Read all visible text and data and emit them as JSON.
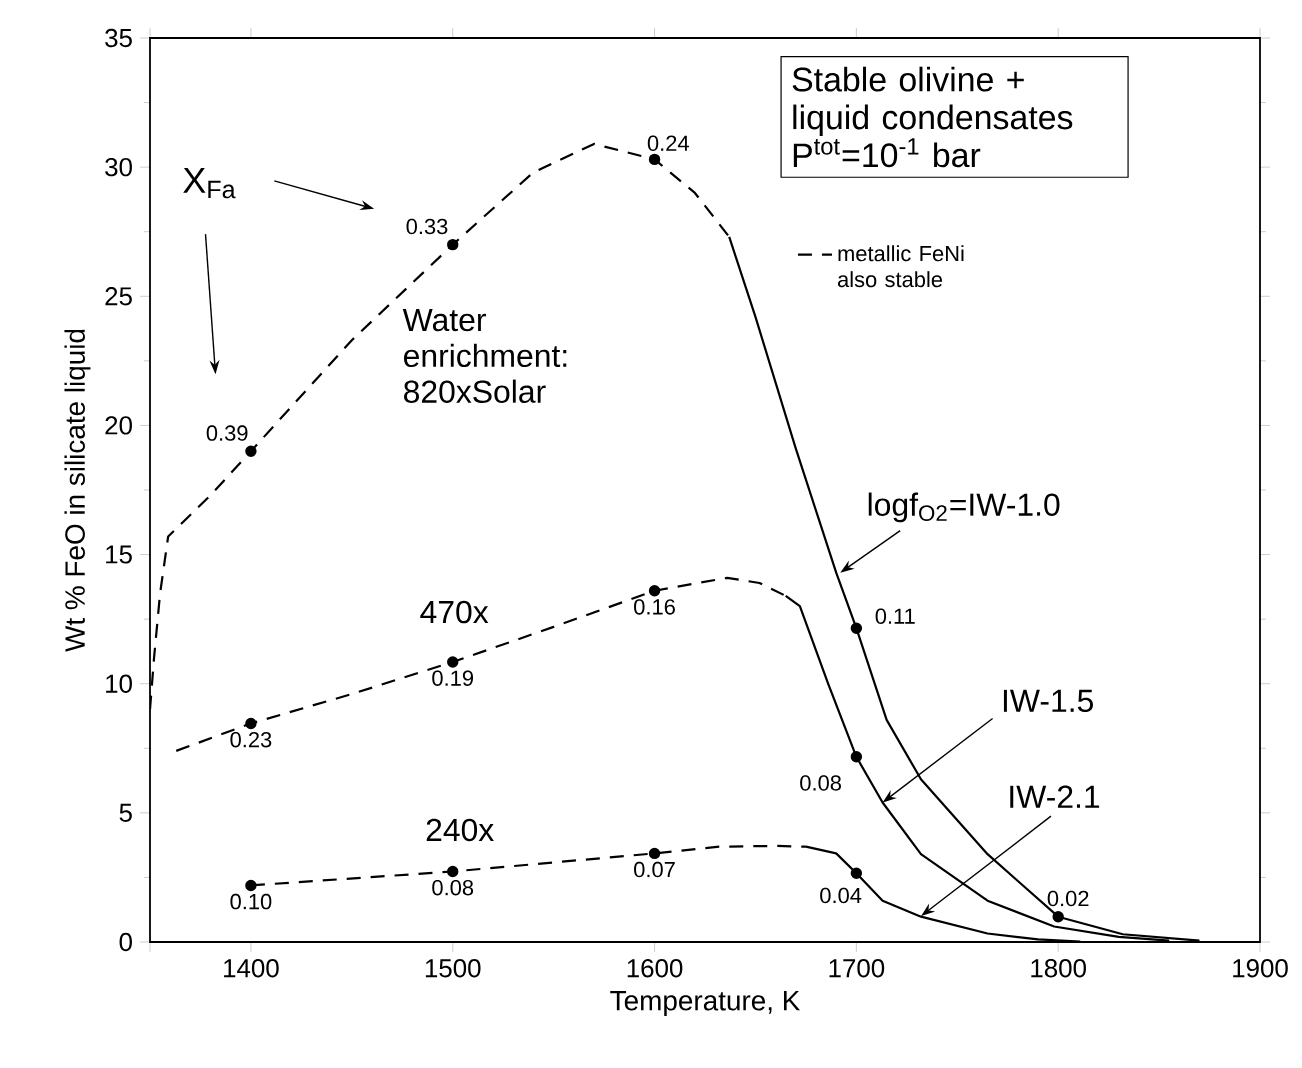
{
  "chart_data": {
    "type": "line",
    "xlabel": "Temperature, K",
    "ylabel": "Wt % FeO in silicate liquid",
    "xlim": [
      1350,
      1900
    ],
    "xticks": [
      {
        "value": 1350,
        "label": null
      },
      1400,
      1500,
      1600,
      1700,
      1800,
      1900
    ],
    "ylim": [
      0,
      35
    ],
    "yticks": [
      0,
      5,
      10,
      15,
      20,
      25,
      30,
      35
    ],
    "legend": "top right",
    "series": [
      {
        "name": "metallic FeNi also stable",
        "color": "#000000",
        "line_style": "dashed",
        "marker": "none",
        "x": [
          1350,
          1352,
          1355,
          1359,
          1380,
          1400,
          1450,
          1500,
          1540,
          1570,
          1600,
          1620,
          1637
        ],
        "values": [
          9.0,
          11.0,
          13.5,
          15.7,
          17.3,
          19.0,
          23.3,
          27.0,
          29.8,
          30.9,
          30.3,
          29.0,
          27.3
        ]
      },
      {
        "color": "#000000",
        "line_style": "solid",
        "marker": "none",
        "x": [
          1637,
          1650,
          1670,
          1690,
          1700,
          1715,
          1732,
          1765,
          1800,
          1832,
          1870
        ],
        "values": [
          27.3,
          24.2,
          19.1,
          14.3,
          12.15,
          8.6,
          6.3,
          3.4,
          0.98,
          0.3,
          0.05
        ]
      },
      {
        "color": "#000000",
        "line_style": "dashed",
        "marker": "none",
        "x": [
          1363,
          1400,
          1450,
          1500,
          1550,
          1600,
          1636,
          1652,
          1665
        ],
        "values": [
          7.4,
          8.46,
          9.6,
          10.84,
          12.2,
          13.6,
          14.1,
          13.9,
          13.4
        ]
      },
      {
        "color": "#000000",
        "line_style": "solid",
        "marker": "none",
        "x": [
          1665,
          1672,
          1686,
          1700,
          1713,
          1732,
          1765,
          1798,
          1830,
          1855
        ],
        "values": [
          13.4,
          13.0,
          10.0,
          7.17,
          5.4,
          3.4,
          1.6,
          0.6,
          0.2,
          0.05
        ]
      },
      {
        "color": "#000000",
        "line_style": "dashed",
        "marker": "none",
        "x": [
          1400,
          1500,
          1600,
          1632,
          1660,
          1675
        ],
        "values": [
          2.19,
          2.73,
          3.43,
          3.69,
          3.72,
          3.69
        ]
      },
      {
        "color": "#000000",
        "line_style": "solid",
        "marker": "none",
        "x": [
          1675,
          1690,
          1700,
          1713,
          1732,
          1765,
          1790,
          1811
        ],
        "values": [
          3.69,
          3.43,
          2.66,
          1.6,
          0.98,
          0.33,
          0.1,
          0.02
        ]
      },
      {
        "type": "scatter",
        "color": "#000000",
        "marker": "circle",
        "x": [
          1400,
          1500,
          1600,
          1700,
          1800
        ],
        "values": [
          19.0,
          27.0,
          30.3,
          12.15,
          0.98
        ]
      },
      {
        "type": "scatter",
        "color": "#000000",
        "marker": "circle",
        "x": [
          1400,
          1500,
          1600,
          1700
        ],
        "values": [
          8.46,
          10.84,
          13.6,
          7.17
        ]
      },
      {
        "type": "scatter",
        "color": "#000000",
        "marker": "circle",
        "x": [
          1400,
          1500,
          1600,
          1700
        ],
        "values": [
          2.19,
          2.73,
          3.43,
          2.66
        ]
      }
    ],
    "annotations": [
      "Stable olivine + liquid condensates P$^{tot}$=10$^{-1}$ bar",
      "X$_{Fa}$",
      {
        "text": "Water enrichment: 820xSolar",
        "x": 1474,
        "y": 24.6
      },
      "470x",
      "240x",
      {
        "text": "logf$_{O2}$=IW-1.0",
        "x": 1692,
        "y": 14.3
      },
      {
        "text": "IW-1.5",
        "x": 1713,
        "y": 5.4
      },
      {
        "text": "IW-2.1",
        "x": 1732,
        "y": 1.0
      },
      {
        "text": "0.39",
        "x": 1400,
        "y": 19.0
      },
      {
        "text": "0.33",
        "x": 1500,
        "y": 27.0
      },
      {
        "text": "0.24",
        "x": 1600,
        "y": 30.3
      },
      {
        "text": "0.11",
        "x": 1700,
        "y": 12.15
      },
      {
        "text": "0.02",
        "x": 1800,
        "y": 0.98
      },
      {
        "text": "0.23",
        "x": 1400,
        "y": 8.46
      },
      {
        "text": "0.19",
        "x": 1500,
        "y": 10.84
      },
      {
        "text": "0.16",
        "x": 1600,
        "y": 13.6
      },
      {
        "text": "0.08",
        "x": 1700,
        "y": 7.17
      },
      {
        "text": "0.10",
        "x": 1400,
        "y": 2.19
      },
      {
        "text": "0.08",
        "x": 1500,
        "y": 2.73
      },
      {
        "text": "0.07",
        "x": 1600,
        "y": 3.43
      },
      {
        "text": "0.04",
        "x": 1700,
        "y": 2.66
      }
    ]
  }
}
